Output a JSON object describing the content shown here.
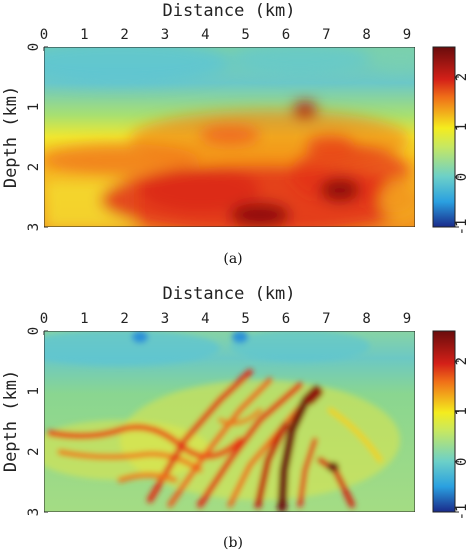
{
  "chart_data": [
    {
      "type": "heatmap",
      "panel": "(a)",
      "xlabel": "Distance (km)",
      "ylabel": "Depth (km)",
      "xlim": [
        0,
        9.2
      ],
      "ylim": [
        3,
        0
      ],
      "xticks": [
        "0",
        "1",
        "2",
        "3",
        "4",
        "5",
        "6",
        "7",
        "8",
        "9"
      ],
      "yticks": [
        "0",
        "1",
        "2",
        "3"
      ],
      "colorbar": {
        "range": [
          -1,
          2.6
        ],
        "ticks": [
          "-1",
          "0",
          "1",
          "2"
        ]
      },
      "description_values": {
        "background": 0.2,
        "shallow_min": -0.4,
        "deep_max": 2.0
      }
    },
    {
      "type": "heatmap",
      "panel": "(b)",
      "xlabel": "Distance (km)",
      "ylabel": "Depth (km)",
      "xlim": [
        0,
        9.2
      ],
      "ylim": [
        3,
        0
      ],
      "xticks": [
        "0",
        "1",
        "2",
        "3",
        "4",
        "5",
        "6",
        "7",
        "8",
        "9"
      ],
      "yticks": [
        "0",
        "1",
        "2",
        "3"
      ],
      "colorbar": {
        "range": [
          -1,
          2.6
        ],
        "ticks": [
          "-1",
          "0",
          "1",
          "2"
        ]
      },
      "description_values": {
        "background": 0.2,
        "shallow_min": -0.6,
        "streak_max": 2.4
      }
    }
  ],
  "captions": {
    "a": "(a)",
    "b": "(b)"
  },
  "colors": {
    "low": "#1a2a8a",
    "cyan": "#2ec8e8",
    "green": "#7ccf8a",
    "yellow": "#f4ec1e",
    "red": "#d42018",
    "high": "#6a0c0c"
  }
}
